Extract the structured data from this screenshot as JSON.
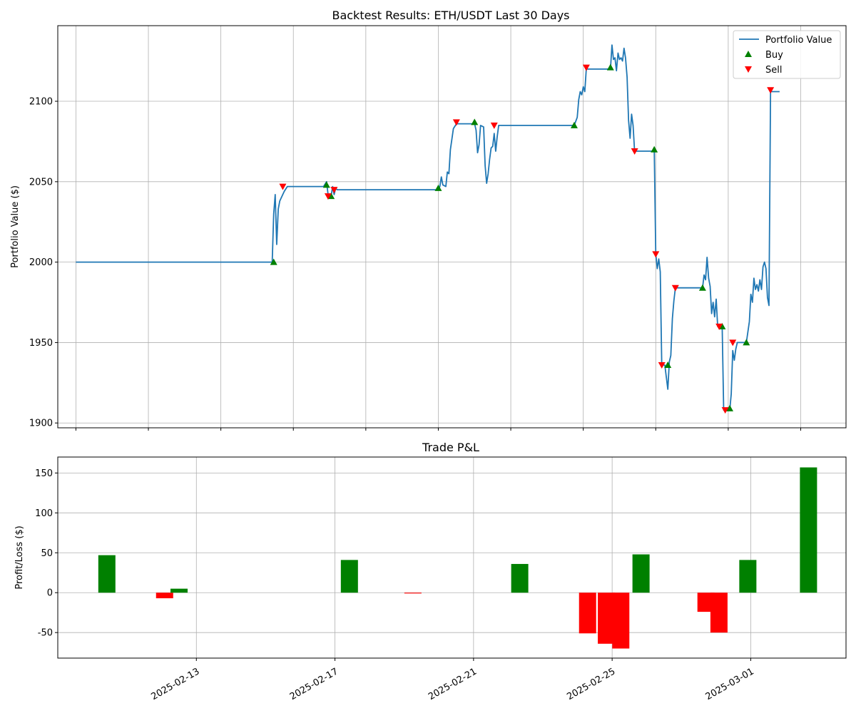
{
  "chart_data": [
    {
      "type": "line",
      "title": "Backtest Results: ETH/USDT Last 30 Days",
      "xlabel": "",
      "ylabel": "Portfolio Value ($)",
      "xlim": [
        "2025-02-10T12:00",
        "2025-03-04T06:00"
      ],
      "ylim": [
        1897,
        2147
      ],
      "yticks": [
        1900,
        1950,
        2000,
        2050,
        2100
      ],
      "xticks": [
        "2025-02-11",
        "2025-02-13",
        "2025-02-15",
        "2025-02-17",
        "2025-02-19",
        "2025-02-21",
        "2025-02-23",
        "2025-02-25",
        "2025-02-27",
        "2025-03-01",
        "2025-03-03"
      ],
      "grid": true,
      "legend_position": "top-right",
      "legend": [
        "Portfolio Value",
        "Buy",
        "Sell"
      ],
      "colors": {
        "line": "#1f77b4",
        "buy": "#008000",
        "sell": "#ff0000",
        "grid": "#b0b0b0"
      },
      "series": [
        {
          "name": "Portfolio Value",
          "points": [
            [
              "2025-02-11T00:00",
              2000
            ],
            [
              "2025-02-16T10:00",
              2000
            ],
            [
              "2025-02-16T11:00",
              2030
            ],
            [
              "2025-02-16T12:00",
              2042
            ],
            [
              "2025-02-16T13:00",
              2011
            ],
            [
              "2025-02-16T14:00",
              2033
            ],
            [
              "2025-02-16T15:00",
              2038
            ],
            [
              "2025-02-16T16:00",
              2040
            ],
            [
              "2025-02-16T18:00",
              2044
            ],
            [
              "2025-02-16T20:00",
              2047
            ],
            [
              "2025-02-17T20:00",
              2047
            ],
            [
              "2025-02-17T22:00",
              2050
            ],
            [
              "2025-02-17T23:00",
              2042
            ],
            [
              "2025-02-18T00:00",
              2041
            ],
            [
              "2025-02-18T01:00",
              2041
            ],
            [
              "2025-02-18T02:00",
              2047
            ],
            [
              "2025-02-18T03:00",
              2042
            ],
            [
              "2025-02-18T04:00",
              2046
            ],
            [
              "2025-02-18T05:00",
              2045
            ],
            [
              "2025-02-21T00:00",
              2045
            ],
            [
              "2025-02-21T01:00",
              2047
            ],
            [
              "2025-02-21T02:00",
              2053
            ],
            [
              "2025-02-21T03:00",
              2048
            ],
            [
              "2025-02-21T05:00",
              2047
            ],
            [
              "2025-02-21T06:00",
              2056
            ],
            [
              "2025-02-21T07:00",
              2055
            ],
            [
              "2025-02-21T08:00",
              2070
            ],
            [
              "2025-02-21T10:00",
              2083
            ],
            [
              "2025-02-21T12:00",
              2086
            ],
            [
              "2025-02-22T00:00",
              2086
            ],
            [
              "2025-02-22T01:00",
              2082
            ],
            [
              "2025-02-22T02:00",
              2068
            ],
            [
              "2025-02-22T03:00",
              2073
            ],
            [
              "2025-02-22T04:00",
              2085
            ],
            [
              "2025-02-22T06:00",
              2084
            ],
            [
              "2025-02-22T07:00",
              2060
            ],
            [
              "2025-02-22T08:00",
              2049
            ],
            [
              "2025-02-22T09:00",
              2055
            ],
            [
              "2025-02-22T10:00",
              2064
            ],
            [
              "2025-02-22T11:00",
              2071
            ],
            [
              "2025-02-22T12:00",
              2072
            ],
            [
              "2025-02-22T13:00",
              2080
            ],
            [
              "2025-02-22T14:00",
              2069
            ],
            [
              "2025-02-22T15:00",
              2078
            ],
            [
              "2025-02-22T16:00",
              2085
            ],
            [
              "2025-02-24T18:00",
              2085
            ],
            [
              "2025-02-24T20:00",
              2090
            ],
            [
              "2025-02-24T21:00",
              2101
            ],
            [
              "2025-02-24T22:00",
              2106
            ],
            [
              "2025-02-24T23:00",
              2104
            ],
            [
              "2025-02-25T00:00",
              2109
            ],
            [
              "2025-02-25T01:00",
              2106
            ],
            [
              "2025-02-25T02:00",
              2120
            ],
            [
              "2025-02-25T18:00",
              2120
            ],
            [
              "2025-02-25T19:00",
              2135
            ],
            [
              "2025-02-25T20:00",
              2126
            ],
            [
              "2025-02-25T21:00",
              2127
            ],
            [
              "2025-02-25T22:00",
              2119
            ],
            [
              "2025-02-25T23:00",
              2130
            ],
            [
              "2025-02-26T00:00",
              2126
            ],
            [
              "2025-02-26T01:00",
              2127
            ],
            [
              "2025-02-26T02:00",
              2125
            ],
            [
              "2025-02-26T03:00",
              2133
            ],
            [
              "2025-02-26T04:00",
              2127
            ],
            [
              "2025-02-26T05:00",
              2115
            ],
            [
              "2025-02-26T06:00",
              2088
            ],
            [
              "2025-02-26T07:00",
              2077
            ],
            [
              "2025-02-26T08:00",
              2092
            ],
            [
              "2025-02-26T09:00",
              2085
            ],
            [
              "2025-02-26T10:00",
              2069
            ],
            [
              "2025-02-26T23:00",
              2069
            ],
            [
              "2025-02-27T00:00",
              2005
            ],
            [
              "2025-02-27T01:00",
              1996
            ],
            [
              "2025-02-27T02:00",
              2002
            ],
            [
              "2025-02-27T03:00",
              1994
            ],
            [
              "2025-02-27T04:00",
              1936
            ],
            [
              "2025-02-27T06:00",
              1936
            ],
            [
              "2025-02-27T08:00",
              1921
            ],
            [
              "2025-02-27T09:00",
              1938
            ],
            [
              "2025-02-27T10:00",
              1942
            ],
            [
              "2025-02-27T11:00",
              1965
            ],
            [
              "2025-02-27T12:00",
              1976
            ],
            [
              "2025-02-27T13:00",
              1984
            ],
            [
              "2025-02-28T07:00",
              1984
            ],
            [
              "2025-02-28T08:00",
              1992
            ],
            [
              "2025-02-28T09:00",
              1989
            ],
            [
              "2025-02-28T10:00",
              2003
            ],
            [
              "2025-02-28T11:00",
              1990
            ],
            [
              "2025-02-28T12:00",
              1985
            ],
            [
              "2025-02-28T13:00",
              1968
            ],
            [
              "2025-02-28T14:00",
              1975
            ],
            [
              "2025-02-28T15:00",
              1966
            ],
            [
              "2025-02-28T16:00",
              1977
            ],
            [
              "2025-02-28T17:00",
              1960
            ],
            [
              "2025-02-28T20:00",
              1960
            ],
            [
              "2025-02-28T21:00",
              1908
            ],
            [
              "2025-03-01T01:00",
              1908
            ],
            [
              "2025-03-01T02:00",
              1918
            ],
            [
              "2025-03-01T03:00",
              1945
            ],
            [
              "2025-03-01T04:00",
              1939
            ],
            [
              "2025-03-01T05:00",
              1946
            ],
            [
              "2025-03-01T06:00",
              1950
            ],
            [
              "2025-03-01T12:00",
              1950
            ],
            [
              "2025-03-01T14:00",
              1963
            ],
            [
              "2025-03-01T15:00",
              1980
            ],
            [
              "2025-03-01T16:00",
              1975
            ],
            [
              "2025-03-01T17:00",
              1990
            ],
            [
              "2025-03-01T18:00",
              1983
            ],
            [
              "2025-03-01T19:00",
              1986
            ],
            [
              "2025-03-01T20:00",
              1982
            ],
            [
              "2025-03-01T21:00",
              1989
            ],
            [
              "2025-03-01T22:00",
              1983
            ],
            [
              "2025-03-01T23:00",
              1997
            ],
            [
              "2025-03-02T00:00",
              2000
            ],
            [
              "2025-03-02T01:00",
              1996
            ],
            [
              "2025-03-02T02:00",
              1978
            ],
            [
              "2025-03-02T03:00",
              1973
            ],
            [
              "2025-03-02T04:00",
              2106
            ],
            [
              "2025-03-02T10:00",
              2106
            ]
          ]
        },
        {
          "name": "Buy",
          "points": [
            [
              "2025-02-16T11:00",
              2000
            ],
            [
              "2025-02-17T22:00",
              2048
            ],
            [
              "2025-02-18T01:00",
              2041
            ],
            [
              "2025-02-21T00:00",
              2046
            ],
            [
              "2025-02-22T00:00",
              2087
            ],
            [
              "2025-02-24T18:00",
              2085
            ],
            [
              "2025-02-25T18:00",
              2121
            ],
            [
              "2025-02-26T23:00",
              2070
            ],
            [
              "2025-02-27T08:00",
              1936
            ],
            [
              "2025-02-28T07:00",
              1984
            ],
            [
              "2025-02-28T20:00",
              1960
            ],
            [
              "2025-03-01T01:00",
              1909
            ],
            [
              "2025-03-01T12:00",
              1950
            ]
          ]
        },
        {
          "name": "Sell",
          "points": [
            [
              "2025-02-16T17:00",
              2047
            ],
            [
              "2025-02-17T23:00",
              2041
            ],
            [
              "2025-02-18T03:00",
              2045
            ],
            [
              "2025-02-21T12:00",
              2087
            ],
            [
              "2025-02-22T13:00",
              2085
            ],
            [
              "2025-02-25T02:00",
              2121
            ],
            [
              "2025-02-26T10:00",
              2069
            ],
            [
              "2025-02-27T00:00",
              2005
            ],
            [
              "2025-02-27T04:00",
              1936
            ],
            [
              "2025-02-27T13:00",
              1984
            ],
            [
              "2025-02-28T18:00",
              1960
            ],
            [
              "2025-02-28T22:00",
              1908
            ],
            [
              "2025-03-01T03:00",
              1950
            ],
            [
              "2025-03-02T04:00",
              2107
            ]
          ]
        }
      ]
    },
    {
      "type": "bar",
      "title": "Trade P&L",
      "xlabel": "",
      "ylabel": "Profit/Loss ($)",
      "xlim": [
        "2025-02-09T00:00",
        "2025-03-03T18:00"
      ],
      "ylim": [
        -82,
        170
      ],
      "yticks": [
        -50,
        0,
        50,
        100,
        150
      ],
      "xticks": [
        "2025-02-13",
        "2025-02-17",
        "2025-02-21",
        "2025-02-25",
        "2025-03-01"
      ],
      "grid": true,
      "colors": {
        "profit": "#008000",
        "loss": "#ff0000"
      },
      "bars": [
        {
          "x": "2025-02-10T10:00",
          "value": 47
        },
        {
          "x": "2025-02-12T02:00",
          "value": -7
        },
        {
          "x": "2025-02-12T12:00",
          "value": 5
        },
        {
          "x": "2025-02-17T10:00",
          "value": 41
        },
        {
          "x": "2025-02-19T06:00",
          "value": -1
        },
        {
          "x": "2025-02-22T08:00",
          "value": 36
        },
        {
          "x": "2025-02-24T07:00",
          "value": -51
        },
        {
          "x": "2025-02-24T20:00",
          "value": -64
        },
        {
          "x": "2025-02-25T06:00",
          "value": -70
        },
        {
          "x": "2025-02-25T20:00",
          "value": 48
        },
        {
          "x": "2025-02-27T17:00",
          "value": -24
        },
        {
          "x": "2025-02-28T02:00",
          "value": -50
        },
        {
          "x": "2025-02-28T22:00",
          "value": 41
        },
        {
          "x": "2025-03-02T16:00",
          "value": 157
        }
      ]
    }
  ]
}
